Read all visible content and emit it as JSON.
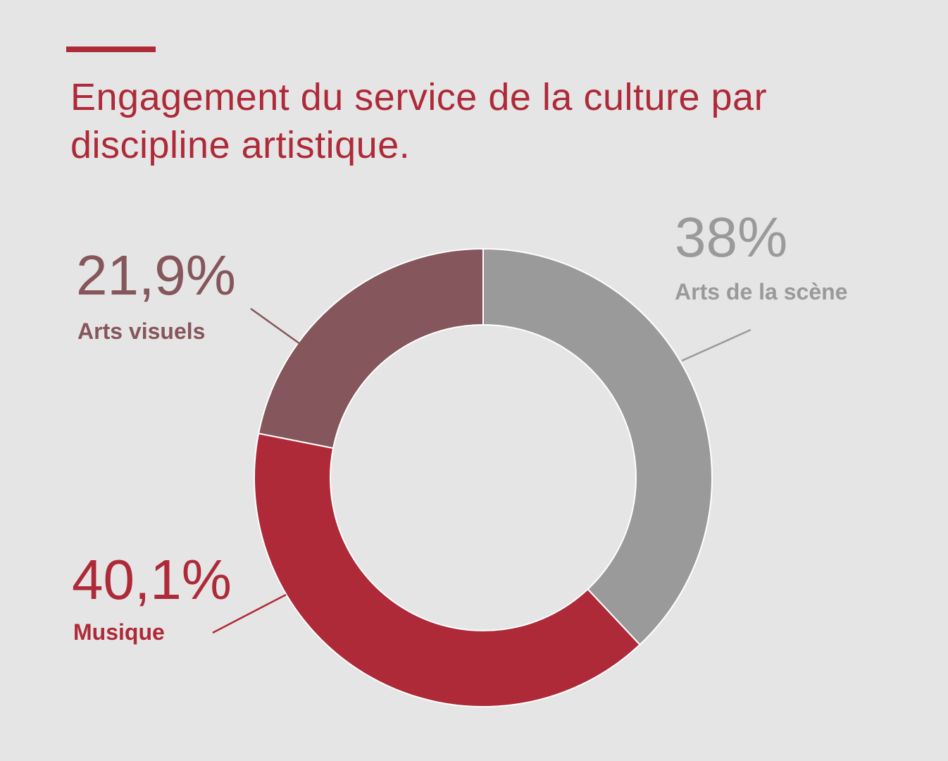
{
  "chart_data": {
    "type": "pie",
    "variant": "donut",
    "title": "Engagement du service de la culture par discipline artistique.",
    "slices": [
      {
        "name": "Arts de la scène",
        "value": 38,
        "label": "38%",
        "color": "#9a9a9a"
      },
      {
        "name": "Musique",
        "value": 40.1,
        "label": "40,1%",
        "color": "#ae2a38"
      },
      {
        "name": "Arts visuels",
        "value": 21.9,
        "label": "21,9%",
        "color": "#85565b"
      }
    ],
    "start_angle": "12 o'clock",
    "direction": "clockwise",
    "legend": "none",
    "accent_color": "#ae2a38",
    "background_color": "#e6e5e5"
  }
}
